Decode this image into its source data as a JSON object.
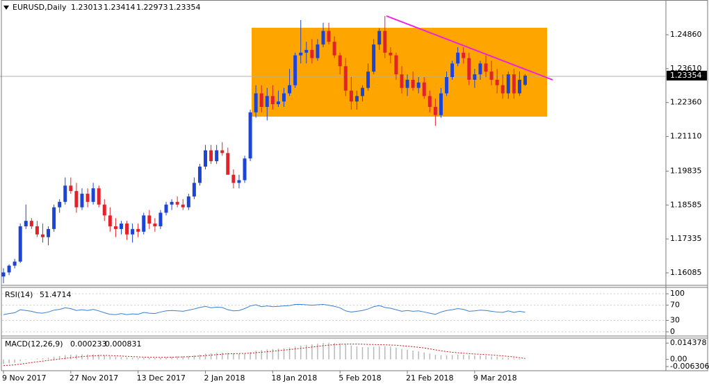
{
  "chart_data": [
    {
      "type": "candlestick",
      "title": "EURUSD,Daily",
      "open": [
        1.1595,
        1.161,
        1.1635,
        1.165,
        1.178,
        1.18,
        1.178,
        1.175,
        1.174,
        1.177,
        1.185,
        1.187,
        1.193,
        1.191,
        1.185,
        1.19,
        1.187,
        1.192,
        1.186,
        1.182,
        1.178,
        1.177,
        1.179,
        1.175,
        1.177,
        1.176,
        1.182,
        1.179,
        1.178,
        1.183,
        1.186,
        1.187,
        1.186,
        1.185,
        1.189,
        1.194,
        1.2,
        1.206,
        1.202,
        1.206,
        1.205,
        1.197,
        1.194,
        1.195,
        1.203,
        1.22,
        1.227,
        1.222,
        1.226,
        1.223,
        1.224,
        1.227,
        1.23,
        1.241,
        1.242,
        1.243,
        1.24,
        1.245,
        1.25,
        1.246,
        1.241,
        1.237,
        1.228,
        1.224,
        1.226,
        1.229,
        1.235,
        1.245,
        1.25,
        1.242,
        1.241,
        1.234,
        1.229,
        1.232,
        1.229,
        1.231,
        1.226,
        1.222,
        1.219,
        1.227,
        1.233,
        1.238,
        1.242,
        1.24,
        1.232,
        1.234,
        1.238,
        1.235,
        1.232,
        1.23,
        1.227,
        1.234,
        1.227,
        1.23013
      ],
      "high": [
        1.1625,
        1.164,
        1.166,
        1.179,
        1.186,
        1.181,
        1.18,
        1.179,
        1.178,
        1.186,
        1.188,
        1.196,
        1.196,
        1.194,
        1.192,
        1.192,
        1.194,
        1.193,
        1.188,
        1.185,
        1.181,
        1.18,
        1.18,
        1.179,
        1.179,
        1.183,
        1.184,
        1.181,
        1.184,
        1.187,
        1.188,
        1.189,
        1.188,
        1.19,
        1.196,
        1.201,
        1.208,
        1.208,
        1.208,
        1.209,
        1.207,
        1.199,
        1.197,
        1.204,
        1.221,
        1.23,
        1.23,
        1.229,
        1.23,
        1.228,
        1.229,
        1.236,
        1.242,
        1.254,
        1.246,
        1.247,
        1.247,
        1.253,
        1.253,
        1.248,
        1.242,
        1.24,
        1.233,
        1.228,
        1.23,
        1.238,
        1.247,
        1.251,
        1.2555,
        1.244,
        1.242,
        1.237,
        1.234,
        1.235,
        1.233,
        1.233,
        1.228,
        1.225,
        1.229,
        1.235,
        1.239,
        1.244,
        1.244,
        1.242,
        1.236,
        1.239,
        1.241,
        1.239,
        1.236,
        1.234,
        1.235,
        1.236,
        1.235,
        1.23414
      ],
      "low": [
        1.157,
        1.16,
        1.1625,
        1.1645,
        1.177,
        1.177,
        1.174,
        1.172,
        1.171,
        1.176,
        1.183,
        1.186,
        1.19,
        1.183,
        1.184,
        1.185,
        1.186,
        1.185,
        1.18,
        1.176,
        1.174,
        1.175,
        1.173,
        1.172,
        1.174,
        1.175,
        1.177,
        1.176,
        1.177,
        1.182,
        1.184,
        1.185,
        1.184,
        1.184,
        1.188,
        1.193,
        1.199,
        1.201,
        1.201,
        1.204,
        1.198,
        1.192,
        1.192,
        1.194,
        1.202,
        1.218,
        1.22,
        1.217,
        1.221,
        1.222,
        1.222,
        1.226,
        1.229,
        1.238,
        1.238,
        1.238,
        1.239,
        1.244,
        1.245,
        1.24,
        1.234,
        1.226,
        1.221,
        1.221,
        1.224,
        1.228,
        1.234,
        1.243,
        1.24,
        1.238,
        1.232,
        1.227,
        1.226,
        1.228,
        1.227,
        1.225,
        1.22,
        1.215,
        1.218,
        1.226,
        1.232,
        1.237,
        1.238,
        1.23,
        1.229,
        1.232,
        1.233,
        1.23,
        1.227,
        1.225,
        1.225,
        1.225,
        1.226,
        1.22973
      ],
      "close": [
        1.161,
        1.1635,
        1.165,
        1.178,
        1.18,
        1.178,
        1.175,
        1.174,
        1.177,
        1.185,
        1.187,
        1.193,
        1.191,
        1.185,
        1.19,
        1.187,
        1.192,
        1.186,
        1.182,
        1.178,
        1.177,
        1.179,
        1.175,
        1.177,
        1.176,
        1.182,
        1.179,
        1.178,
        1.183,
        1.186,
        1.187,
        1.186,
        1.185,
        1.189,
        1.194,
        1.2,
        1.206,
        1.202,
        1.206,
        1.205,
        1.197,
        1.194,
        1.195,
        1.203,
        1.22,
        1.227,
        1.222,
        1.226,
        1.223,
        1.224,
        1.227,
        1.23,
        1.241,
        1.242,
        1.243,
        1.24,
        1.245,
        1.25,
        1.246,
        1.241,
        1.237,
        1.228,
        1.224,
        1.226,
        1.229,
        1.235,
        1.245,
        1.25,
        1.242,
        1.241,
        1.234,
        1.229,
        1.232,
        1.229,
        1.231,
        1.226,
        1.222,
        1.219,
        1.227,
        1.233,
        1.238,
        1.242,
        1.24,
        1.232,
        1.234,
        1.238,
        1.235,
        1.232,
        1.23,
        1.227,
        1.234,
        1.227,
        1.232,
        1.23354
      ],
      "up_color": "#1c45d6",
      "down_color": "#e2222a",
      "ylim": [
        1.1565,
        1.2614
      ],
      "yticks": [
        {
          "value": 1.2486,
          "label": "1.24860"
        },
        {
          "value": 1.2361,
          "label": "1.23610"
        },
        {
          "value": 1.2236,
          "label": "1.22360"
        },
        {
          "value": 1.2111,
          "label": "1.21110"
        },
        1.19835,
        1.18585,
        1.17335,
        1.16085
      ],
      "x_labels": [
        "9 Nov 2017",
        "27 Nov 2017",
        "13 Dec 2017",
        "2 Jan 2018",
        "18 Jan 2018",
        "5 Feb 2018",
        "21 Feb 2018",
        "9 Mar 2018"
      ]
    },
    {
      "type": "line",
      "title": "RSI(14)",
      "color": "#3a7fd0",
      "values": [
        45,
        48,
        50,
        58,
        56,
        54,
        50,
        49,
        52,
        57,
        59,
        63,
        61,
        56,
        58,
        56,
        59,
        55,
        50,
        46,
        45,
        48,
        45,
        47,
        46,
        51,
        49,
        48,
        52,
        55,
        56,
        55,
        54,
        57,
        60,
        64,
        67,
        63,
        65,
        64,
        58,
        55,
        56,
        61,
        68,
        71,
        66,
        68,
        66,
        67,
        68,
        69,
        72,
        72,
        71,
        70,
        71,
        72,
        70,
        67,
        63,
        55,
        52,
        54,
        56,
        60,
        66,
        69,
        64,
        62,
        58,
        54,
        56,
        54,
        55,
        52,
        49,
        46,
        52,
        56,
        58,
        61,
        59,
        54,
        55,
        57,
        56,
        54,
        52,
        51,
        55,
        51,
        54,
        51.4714
      ],
      "ylim": [
        -11.1,
        116.7
      ],
      "yticks": [
        100,
        70,
        30,
        0
      ]
    },
    {
      "type": "macd",
      "title": "MACD(12,26,9)",
      "histogram_color": "#b8b8b8",
      "signal_color": "#d01010",
      "histogram": [
        -0.004,
        -0.0035,
        -0.003,
        -0.0015,
        -0.0005,
        0.0003,
        0.0008,
        0.001,
        0.0015,
        0.0022,
        0.003,
        0.0038,
        0.0042,
        0.0042,
        0.0044,
        0.0043,
        0.0044,
        0.0042,
        0.0037,
        0.003,
        0.0024,
        0.0021,
        0.0017,
        0.0015,
        0.0013,
        0.0015,
        0.0015,
        0.0014,
        0.0016,
        0.002,
        0.0024,
        0.0027,
        0.0028,
        0.0031,
        0.0036,
        0.0042,
        0.005,
        0.0055,
        0.0058,
        0.0061,
        0.0058,
        0.0053,
        0.005,
        0.0053,
        0.0064,
        0.0076,
        0.0082,
        0.0088,
        0.0092,
        0.0095,
        0.0099,
        0.0104,
        0.0114,
        0.0122,
        0.0128,
        0.0133,
        0.0139,
        0.0145,
        0.0146,
        0.0145,
        0.0141,
        0.0132,
        0.0123,
        0.0115,
        0.0109,
        0.0108,
        0.0112,
        0.0117,
        0.0116,
        0.0112,
        0.0104,
        0.0093,
        0.0086,
        0.0078,
        0.0071,
        0.0062,
        0.0052,
        0.0041,
        0.0038,
        0.0037,
        0.0039,
        0.0042,
        0.0042,
        0.0037,
        0.0034,
        0.0034,
        0.0032,
        0.0027,
        0.0021,
        0.0015,
        0.0014,
        0.0008,
        0.0006,
        0.000233
      ],
      "signal": [
        -0.0055,
        -0.0052,
        -0.0048,
        -0.0042,
        -0.0035,
        -0.0028,
        -0.0021,
        -0.0015,
        -0.0009,
        -0.0003,
        0.0003,
        0.0009,
        0.0015,
        0.002,
        0.0025,
        0.0029,
        0.0032,
        0.0034,
        0.0035,
        0.0034,
        0.0032,
        0.003,
        0.0027,
        0.0025,
        0.0022,
        0.002,
        0.0019,
        0.0018,
        0.0018,
        0.0018,
        0.0019,
        0.0021,
        0.0022,
        0.0024,
        0.0027,
        0.003,
        0.0034,
        0.0038,
        0.0042,
        0.0046,
        0.0049,
        0.0051,
        0.0052,
        0.0053,
        0.0055,
        0.0059,
        0.0063,
        0.0068,
        0.0073,
        0.0077,
        0.0082,
        0.0087,
        0.0092,
        0.0098,
        0.0103,
        0.0109,
        0.0115,
        0.0121,
        0.0126,
        0.013,
        0.0133,
        0.0135,
        0.0135,
        0.0135,
        0.0134,
        0.0132,
        0.0131,
        0.013,
        0.0129,
        0.0127,
        0.0125,
        0.0121,
        0.0117,
        0.0112,
        0.0107,
        0.0101,
        0.0093,
        0.0084,
        0.0076,
        0.0069,
        0.0063,
        0.0059,
        0.0055,
        0.0051,
        0.0048,
        0.0045,
        0.0042,
        0.0039,
        0.0035,
        0.0031,
        0.0027,
        0.0022,
        0.0015,
        0.000831
      ],
      "ylim": [
        -0.01,
        0.0188
      ],
      "yticks": [
        0.014378,
        {
          "value": 0,
          "label": "0.00"
        },
        -0.006306
      ]
    }
  ]
}
